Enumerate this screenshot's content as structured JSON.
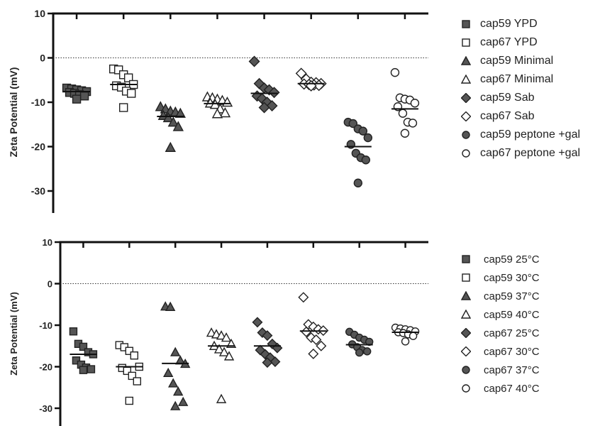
{
  "chart_data": [
    {
      "type": "scatter",
      "ylabel": "Zeta Potential (mV)",
      "ylim": [
        -35,
        10
      ],
      "yticks": [
        10,
        0,
        -10,
        -20,
        -30
      ],
      "reference_line": 0,
      "groups": [
        {
          "name": "cap59 YPD",
          "marker": "square",
          "fill": "filled",
          "mean": -7.6,
          "values": [
            -6.8,
            -7.0,
            -7.2,
            -7.4,
            -7.6,
            -7.8,
            -8.0,
            -8.3,
            -8.6,
            -9.3
          ]
        },
        {
          "name": "cap67 YPD",
          "marker": "square",
          "fill": "open",
          "mean": -6.0,
          "values": [
            -2.5,
            -2.7,
            -3.8,
            -4.5,
            -6.0,
            -6.3,
            -6.6,
            -7.5,
            -8.0,
            -11.2
          ]
        },
        {
          "name": "cap59 Minimal",
          "marker": "triangle",
          "fill": "filled",
          "mean": -13.2,
          "values": [
            -11.0,
            -11.5,
            -12.0,
            -12.2,
            -12.5,
            -13.0,
            -13.5,
            -14.5,
            -15.5,
            -20.2
          ]
        },
        {
          "name": "cap67 Minimal",
          "marker": "triangle",
          "fill": "open",
          "mean": -10.3,
          "values": [
            -8.8,
            -9.0,
            -9.3,
            -9.6,
            -10.0,
            -10.2,
            -10.5,
            -11.5,
            -12.4,
            -12.6
          ]
        },
        {
          "name": "cap59 Sab",
          "marker": "diamond",
          "fill": "filled",
          "mean": -8.0,
          "values": [
            -0.8,
            -5.8,
            -6.8,
            -7.2,
            -7.8,
            -8.6,
            -9.2,
            -10.0,
            -10.8,
            -11.2
          ]
        },
        {
          "name": "cap67 Sab",
          "marker": "diamond",
          "fill": "open",
          "mean": -5.8,
          "values": [
            -3.5,
            -4.8,
            -5.5,
            -5.6,
            -5.8,
            -5.9,
            -6.0,
            -6.1,
            -6.2,
            -6.3
          ]
        },
        {
          "name": "cap59 peptone +gal",
          "marker": "circle",
          "fill": "filled",
          "mean": -20.0,
          "values": [
            -14.5,
            -14.8,
            -16.0,
            -16.5,
            -18.0,
            -19.5,
            -21.5,
            -22.5,
            -23.0,
            -28.2
          ]
        },
        {
          "name": "cap67 peptone +gal",
          "marker": "circle",
          "fill": "open",
          "mean": -11.5,
          "values": [
            -3.3,
            -9.0,
            -9.3,
            -9.5,
            -10.2,
            -11.0,
            -12.5,
            -14.5,
            -14.7,
            -17.0
          ]
        }
      ],
      "legend_position": "right"
    },
    {
      "type": "scatter",
      "ylabel": "Zeta Potential (mV)",
      "ylim": [
        -33,
        10
      ],
      "yticks": [
        10,
        0,
        -10,
        -20,
        -30
      ],
      "reference_line": 0,
      "groups": [
        {
          "name": "cap59 25°C",
          "marker": "square",
          "fill": "filled",
          "mean": -17.0,
          "values": [
            -11.5,
            -14.5,
            -15.2,
            -16.5,
            -17.0,
            -18.5,
            -19.5,
            -20.2,
            -20.6,
            -20.8
          ]
        },
        {
          "name": "cap59 30°C",
          "marker": "square",
          "fill": "open",
          "mean": -20.0,
          "values": [
            -14.8,
            -15.3,
            -16.2,
            -17.3,
            -20.0,
            -20.3,
            -21.0,
            -22.2,
            -23.5,
            -28.2
          ]
        },
        {
          "name": "cap59 37°C",
          "marker": "triangle",
          "fill": "filled",
          "mean": -19.2,
          "values": [
            -5.5,
            -5.6,
            -16.5,
            -18.5,
            -19.3,
            -21.5,
            -24.0,
            -26.0,
            -28.5,
            -29.5
          ]
        },
        {
          "name": "cap59 40°C",
          "marker": "triangle",
          "fill": "open",
          "mean": -15.0,
          "values": [
            -11.8,
            -12.2,
            -12.5,
            -13.0,
            -14.5,
            -15.0,
            -15.8,
            -16.5,
            -17.5,
            -27.8
          ]
        },
        {
          "name": "cap67 25°C",
          "marker": "diamond",
          "fill": "filled",
          "mean": -15.0,
          "values": [
            -9.3,
            -11.8,
            -12.5,
            -14.5,
            -15.5,
            -16.0,
            -17.0,
            -17.8,
            -18.8,
            -19.0
          ]
        },
        {
          "name": "cap67 30°C",
          "marker": "diamond",
          "fill": "open",
          "mean": -11.4,
          "values": [
            -3.3,
            -9.8,
            -10.4,
            -11.0,
            -11.3,
            -11.6,
            -13.0,
            -13.5,
            -15.0,
            -16.9
          ]
        },
        {
          "name": "cap67 37°C",
          "marker": "circle",
          "fill": "filled",
          "mean": -14.7,
          "values": [
            -11.6,
            -12.3,
            -13.0,
            -13.5,
            -14.0,
            -14.6,
            -15.3,
            -16.0,
            -16.3,
            -16.6
          ]
        },
        {
          "name": "cap67 40°C",
          "marker": "circle",
          "fill": "open",
          "mean": -11.7,
          "values": [
            -10.6,
            -10.8,
            -11.0,
            -11.2,
            -11.5,
            -11.7,
            -11.9,
            -12.2,
            -12.6,
            -13.9
          ]
        }
      ],
      "legend_position": "right"
    }
  ],
  "legend_top": [
    {
      "label": "cap59 YPD",
      "marker": "square",
      "fill": "filled"
    },
    {
      "label": "cap67 YPD",
      "marker": "square",
      "fill": "open"
    },
    {
      "label": "cap59 Minimal",
      "marker": "triangle",
      "fill": "filled"
    },
    {
      "label": "cap67 Minimal",
      "marker": "triangle",
      "fill": "open"
    },
    {
      "label": "cap59 Sab",
      "marker": "diamond",
      "fill": "filled"
    },
    {
      "label": "cap67 Sab",
      "marker": "diamond",
      "fill": "open"
    },
    {
      "label": "cap59 peptone +gal",
      "marker": "circle",
      "fill": "filled"
    },
    {
      "label": "cap67 peptone +gal",
      "marker": "circle",
      "fill": "open"
    }
  ],
  "legend_bottom": [
    {
      "label": "cap59 25°C",
      "marker": "square",
      "fill": "filled"
    },
    {
      "label": "cap59 30°C",
      "marker": "square",
      "fill": "open"
    },
    {
      "label": "cap59 37°C",
      "marker": "triangle",
      "fill": "filled"
    },
    {
      "label": "cap59 40°C",
      "marker": "triangle",
      "fill": "open"
    },
    {
      "label": "cap67 25°C",
      "marker": "diamond",
      "fill": "filled"
    },
    {
      "label": "cap67 30°C",
      "marker": "diamond",
      "fill": "open"
    },
    {
      "label": "cap67 37°C",
      "marker": "circle",
      "fill": "filled"
    },
    {
      "label": "cap67 40°C",
      "marker": "circle",
      "fill": "open"
    }
  ],
  "colors": {
    "filled_marker": "#555555",
    "marker_stroke": "#222222",
    "open_marker": "#ffffff",
    "axis": "#111111",
    "text": "#222222"
  }
}
